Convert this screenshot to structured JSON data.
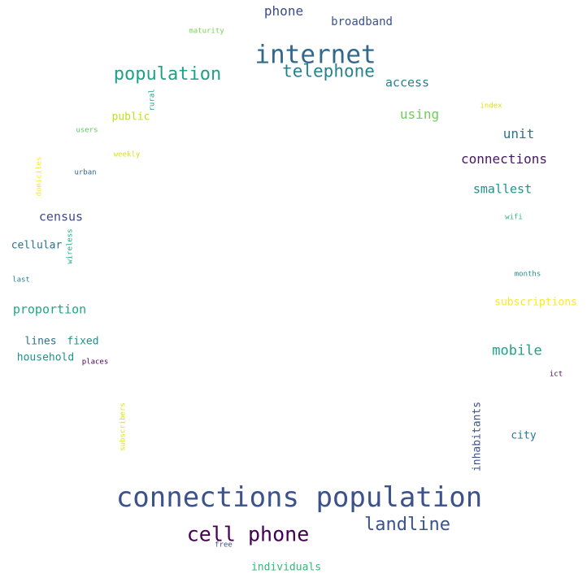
{
  "words": [
    {
      "id": "connections-population",
      "text": "connections population",
      "color": "#3b528b"
    },
    {
      "id": "internet",
      "text": "internet",
      "color": "#31688e"
    },
    {
      "id": "cell-phone",
      "text": "cell phone",
      "color": "#440154"
    },
    {
      "id": "landline",
      "text": "landline",
      "color": "#3b528b"
    },
    {
      "id": "population",
      "text": "population",
      "color": "#1fa187"
    },
    {
      "id": "telephone",
      "text": "telephone",
      "color": "#26828e"
    },
    {
      "id": "phone",
      "text": "phone",
      "color": "#3e4a89"
    },
    {
      "id": "broadband",
      "text": "broadband",
      "color": "#3b528b"
    },
    {
      "id": "access",
      "text": "access",
      "color": "#26828e"
    },
    {
      "id": "maturity",
      "text": "maturity",
      "color": "#7ad151"
    },
    {
      "id": "rural",
      "text": "rural",
      "color": "#1f9e89"
    },
    {
      "id": "using",
      "text": "using",
      "color": "#6ece58"
    },
    {
      "id": "public",
      "text": "public",
      "color": "#bddf26"
    },
    {
      "id": "index",
      "text": "index",
      "color": "#d8e219"
    },
    {
      "id": "unit",
      "text": "unit",
      "color": "#2c728e"
    },
    {
      "id": "users",
      "text": "users",
      "color": "#5ec962"
    },
    {
      "id": "weekly",
      "text": "weekly",
      "color": "#d8e219"
    },
    {
      "id": "connections",
      "text": "connections",
      "color": "#481668"
    },
    {
      "id": "domiciles",
      "text": "domiciles",
      "color": "#fde725"
    },
    {
      "id": "urban",
      "text": "urban",
      "color": "#31688e"
    },
    {
      "id": "smallest",
      "text": "smallest",
      "color": "#21918c"
    },
    {
      "id": "census",
      "text": "census",
      "color": "#3e4a89"
    },
    {
      "id": "wifi",
      "text": "wifi",
      "color": "#35b779"
    },
    {
      "id": "cellular",
      "text": "cellular",
      "color": "#2c728e"
    },
    {
      "id": "wireless",
      "text": "wireless",
      "color": "#20a486"
    },
    {
      "id": "months",
      "text": "months",
      "color": "#21918c"
    },
    {
      "id": "last",
      "text": "last",
      "color": "#26828e"
    },
    {
      "id": "subscriptions",
      "text": "subscriptions",
      "color": "#fde725"
    },
    {
      "id": "proportion",
      "text": "proportion",
      "color": "#21a685"
    },
    {
      "id": "lines",
      "text": "lines",
      "color": "#2c728e"
    },
    {
      "id": "fixed",
      "text": "fixed",
      "color": "#21918c"
    },
    {
      "id": "mobile",
      "text": "mobile",
      "color": "#1fa187"
    },
    {
      "id": "household",
      "text": "household",
      "color": "#21918c"
    },
    {
      "id": "places",
      "text": "places",
      "color": "#440154"
    },
    {
      "id": "ict",
      "text": "ict",
      "color": "#440154"
    },
    {
      "id": "subscribers",
      "text": "subscribers",
      "color": "#d8e219"
    },
    {
      "id": "inhabitants",
      "text": "inhabitants",
      "color": "#3b528b"
    },
    {
      "id": "city",
      "text": "city",
      "color": "#2a788e"
    },
    {
      "id": "free",
      "text": "free",
      "color": "#3e4a89"
    },
    {
      "id": "individuals",
      "text": "individuals",
      "color": "#35b779"
    }
  ]
}
